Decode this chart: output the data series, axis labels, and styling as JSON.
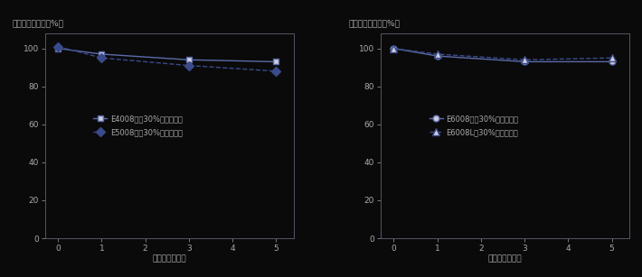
{
  "left": {
    "ylabel": "引張強度保持率（%）",
    "xlabel": "リサイクル回数",
    "x": [
      0,
      1,
      3,
      5
    ],
    "series": [
      {
        "label": "E4008　　30%リサイクル",
        "values": [
          100,
          97,
          94,
          93
        ],
        "marker": "s",
        "linestyle": "-",
        "color": "#5b6baa",
        "markersize": 5,
        "markerfacecolor": "#ccccdd",
        "markeredgecolor": "#5b6baa",
        "linewidth": 1.0
      },
      {
        "label": "E5008　　30%リサイクル",
        "values": [
          101,
          95,
          91,
          88
        ],
        "marker": "D",
        "linestyle": "--",
        "color": "#3a4a8a",
        "markersize": 5,
        "markerfacecolor": "#3a4a8a",
        "markeredgecolor": "#3a4a8a",
        "linewidth": 1.0
      }
    ],
    "ylim": [
      0,
      108
    ],
    "yticks": [
      0,
      20,
      40,
      60,
      80,
      100
    ],
    "xticks": [
      0,
      1,
      2,
      3,
      4,
      5
    ]
  },
  "right": {
    "ylabel": "引張強度保持率（%）",
    "xlabel": "リサイクル回数",
    "x": [
      0,
      1,
      3,
      5
    ],
    "series": [
      {
        "label": "E6008　　30%リサイクル",
        "values": [
          100,
          96,
          93,
          93
        ],
        "marker": "o",
        "linestyle": "-",
        "color": "#5b6baa",
        "markersize": 5,
        "markerfacecolor": "#ccccdd",
        "markeredgecolor": "#5b6baa",
        "linewidth": 1.0
      },
      {
        "label": "E6008L　30%リサイクル",
        "values": [
          100,
          97,
          94,
          95
        ],
        "marker": "^",
        "linestyle": "--",
        "color": "#3a4a8a",
        "markersize": 6,
        "markerfacecolor": "#ccccdd",
        "markeredgecolor": "#3a4a8a",
        "linewidth": 1.0
      }
    ],
    "ylim": [
      0,
      108
    ],
    "yticks": [
      0,
      20,
      40,
      60,
      80,
      100
    ],
    "xticks": [
      0,
      1,
      2,
      3,
      4,
      5
    ]
  },
  "fig_bg": "#0a0a0a",
  "plot_bg": "#0a0a0a",
  "text_color": "#aaaaaa",
  "spine_color": "#555566",
  "tick_color": "#888899",
  "font_size": 6.5,
  "label_fontsize": 6.5
}
